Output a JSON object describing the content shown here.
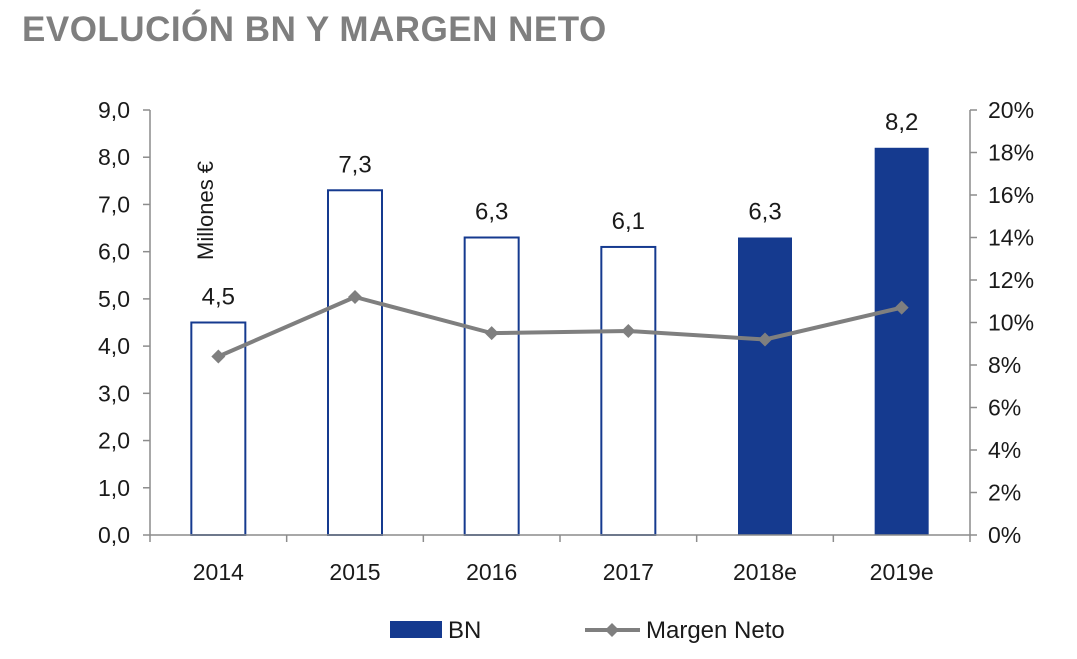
{
  "title": "EVOLUCIÓN BN Y MARGEN NETO",
  "colors": {
    "title": "#7f7f7f",
    "bar_fill_estimate": "#153a8f",
    "bar_outline": "#153a8f",
    "line": "#7f7f7f",
    "axis": "#8c8c8c"
  },
  "chart_data": {
    "type": "bar",
    "title": "EVOLUCIÓN BN Y MARGEN NETO",
    "categories": [
      "2014",
      "2015",
      "2016",
      "2017",
      "2018e",
      "2019e"
    ],
    "ylabel": "Millones €",
    "ylim": [
      0,
      9
    ],
    "yticks": [
      "0,0",
      "1,0",
      "2,0",
      "3,0",
      "4,0",
      "5,0",
      "6,0",
      "7,0",
      "8,0",
      "9,0"
    ],
    "y2lim": [
      0,
      20
    ],
    "y2ticks": [
      "0%",
      "2%",
      "4%",
      "6%",
      "8%",
      "10%",
      "12%",
      "14%",
      "16%",
      "18%",
      "20%"
    ],
    "series": [
      {
        "name": "BN",
        "type": "bar",
        "values": [
          4.5,
          7.3,
          6.3,
          6.1,
          6.3,
          8.2
        ],
        "labels": [
          "4,5",
          "7,3",
          "6,3",
          "6,1",
          "6,3",
          "8,2"
        ],
        "filled": [
          false,
          false,
          false,
          false,
          true,
          true
        ]
      },
      {
        "name": "Margen Neto",
        "type": "line",
        "axis": "right",
        "values": [
          8.4,
          11.2,
          9.5,
          9.6,
          9.2,
          10.7
        ]
      }
    ],
    "legend": [
      "BN",
      "Margen Neto"
    ],
    "legend_position": "bottom",
    "grid": false
  }
}
